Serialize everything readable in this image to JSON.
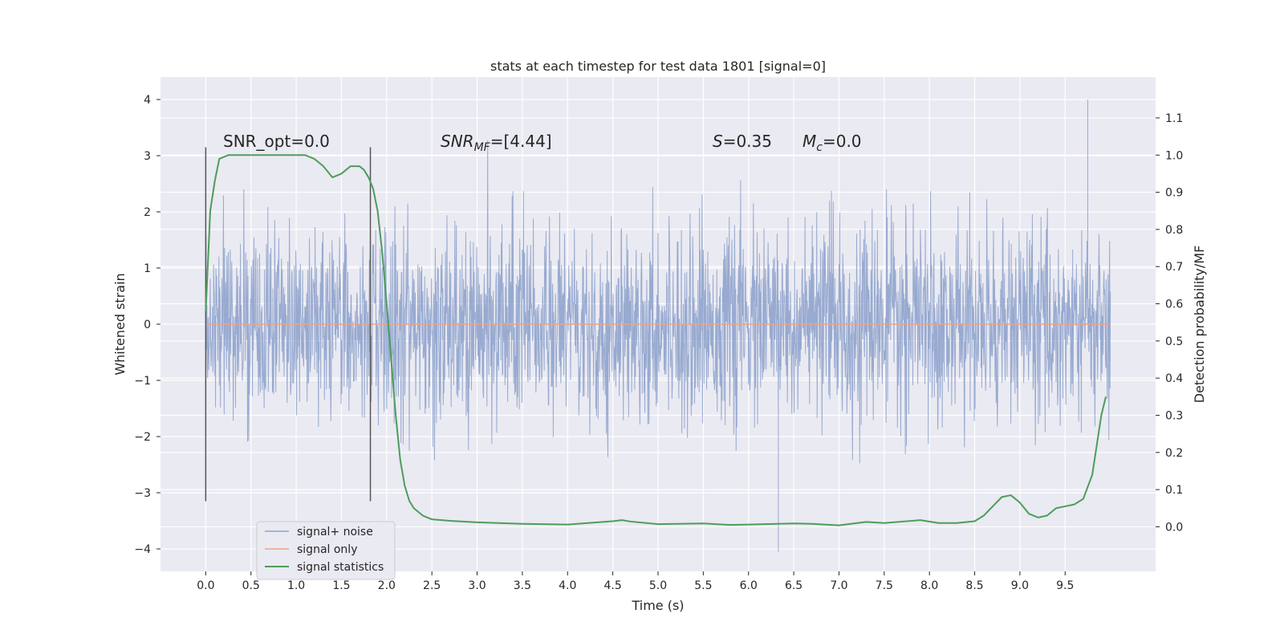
{
  "chart_data": {
    "type": "line",
    "title": "stats at each timestep for test data 1801 [signal=0]",
    "xlabel": "Time (s)",
    "ylabel": "Whitened strain",
    "y2label": "Detection probability/MF",
    "xlim": [
      -0.5,
      10.5
    ],
    "ylim": [
      -4.4,
      4.4
    ],
    "y2lim": [
      -0.12,
      1.21
    ],
    "xticks": [
      "0.0",
      "0.5",
      "1.0",
      "1.5",
      "2.0",
      "2.5",
      "3.0",
      "3.5",
      "4.0",
      "4.5",
      "5.0",
      "5.5",
      "6.0",
      "6.5",
      "7.0",
      "7.5",
      "8.0",
      "8.5",
      "9.0",
      "9.5"
    ],
    "yticks": [
      "4",
      "3",
      "2",
      "1",
      "0",
      "−1",
      "−2",
      "−3",
      "−4"
    ],
    "y2ticks": [
      "1.1",
      "1.0",
      "0.9",
      "0.8",
      "0.7",
      "0.6",
      "0.5",
      "0.4",
      "0.3",
      "0.2",
      "0.1",
      "0.0"
    ],
    "grid": true,
    "legend_position": "lower-left",
    "annotations": {
      "snr_opt": "SNR_opt=0.0",
      "snr_mf_label": "SNR",
      "snr_mf_sub": "MF",
      "snr_mf_value": "=[4.44]",
      "s_label": "S",
      "s_value": "=0.35",
      "mc_label": "M",
      "mc_sub": "c",
      "mc_value": "=0.0"
    },
    "vertical_markers_x": [
      0.0,
      1.82
    ],
    "series": [
      {
        "name": "signal+ noise",
        "color": "#8fa3cc",
        "kind": "noise",
        "x_range": [
          0.0,
          10.0
        ],
        "typical_envelope": [
          -1.3,
          1.3
        ],
        "peak_max": 4.0,
        "peak_min": -4.05
      },
      {
        "name": "signal only",
        "color": "#e8a58a",
        "kind": "constant",
        "x_range": [
          0.0,
          10.0
        ],
        "value": 0.0
      },
      {
        "name": "signal statistics",
        "color": "#4c9d5a",
        "kind": "curve",
        "axis": "right",
        "x": [
          0.0,
          0.05,
          0.1,
          0.15,
          0.25,
          0.5,
          0.8,
          1.0,
          1.1,
          1.2,
          1.3,
          1.4,
          1.5,
          1.6,
          1.7,
          1.75,
          1.8,
          1.85,
          1.9,
          1.95,
          2.0,
          2.05,
          2.1,
          2.15,
          2.2,
          2.25,
          2.3,
          2.4,
          2.5,
          2.7,
          3.0,
          3.5,
          4.0,
          4.5,
          4.6,
          4.7,
          5.0,
          5.5,
          5.8,
          6.0,
          6.5,
          6.7,
          7.0,
          7.3,
          7.5,
          7.7,
          7.9,
          8.1,
          8.3,
          8.5,
          8.6,
          8.7,
          8.8,
          8.9,
          9.0,
          9.1,
          9.2,
          9.3,
          9.4,
          9.5,
          9.6,
          9.7,
          9.8,
          9.9,
          9.95
        ],
        "y": [
          0.58,
          0.85,
          0.93,
          0.99,
          1.0,
          1.0,
          1.0,
          1.0,
          1.0,
          0.99,
          0.97,
          0.94,
          0.95,
          0.97,
          0.97,
          0.96,
          0.94,
          0.91,
          0.85,
          0.74,
          0.6,
          0.45,
          0.3,
          0.18,
          0.11,
          0.07,
          0.05,
          0.03,
          0.02,
          0.016,
          0.012,
          0.008,
          0.006,
          0.015,
          0.018,
          0.014,
          0.007,
          0.009,
          0.005,
          0.006,
          0.009,
          0.008,
          0.004,
          0.013,
          0.01,
          0.014,
          0.018,
          0.01,
          0.01,
          0.015,
          0.03,
          0.055,
          0.08,
          0.085,
          0.065,
          0.035,
          0.025,
          0.03,
          0.05,
          0.055,
          0.06,
          0.075,
          0.14,
          0.3,
          0.35
        ]
      }
    ]
  }
}
